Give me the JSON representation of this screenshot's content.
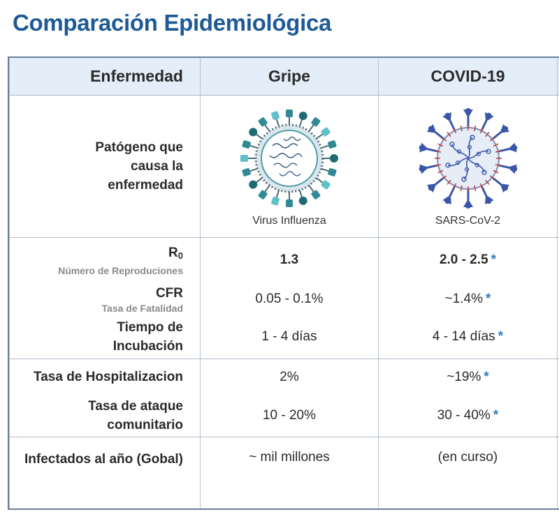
{
  "title": "Comparación Epidemiológica",
  "header": {
    "col1": "Enfermedad",
    "col2": "Gripe",
    "col3": "COVID-19"
  },
  "pathogen": {
    "label": "Patógeno que causa la enfermedad",
    "gripe": "Virus Influenza",
    "covid": "SARS-CoV-2"
  },
  "rows": {
    "r0": {
      "label": "R",
      "label_sub_index": "0",
      "sub": "Número de Reproduciones",
      "gripe": "1.3",
      "covid": "2.0 - 2.5"
    },
    "cfr": {
      "label": "CFR",
      "sub": "Tasa de Fatalidad",
      "gripe": "0.05 - 0.1%",
      "covid": "~1.4%"
    },
    "incubacion": {
      "label_line1": "Tiempo de",
      "label_line2": "Incubación",
      "gripe": "1 - 4 días",
      "covid": "4 - 14 días"
    },
    "hospitalizacion": {
      "label": "Tasa de Hospitalizacion",
      "gripe": "2%",
      "covid": "~19%"
    },
    "ataque": {
      "label_line1": "Tasa de ataque",
      "label_line2": "comunitario",
      "gripe": "10 - 20%",
      "covid": "30 - 40%"
    },
    "infectados": {
      "label": "Infectados al año (Gobal)",
      "gripe": "~ mil millones",
      "covid": "(en curso)"
    }
  },
  "asterisk": "*",
  "colors": {
    "title": "#1e5a96",
    "header_bg": "#e3eef9",
    "asterisk": "#2f7dc0",
    "influenza": "#2f8a96",
    "covid": "#3a56a8"
  },
  "icons": {
    "gripe": "influenza-virus-icon",
    "covid": "sars-cov-2-virus-icon"
  }
}
